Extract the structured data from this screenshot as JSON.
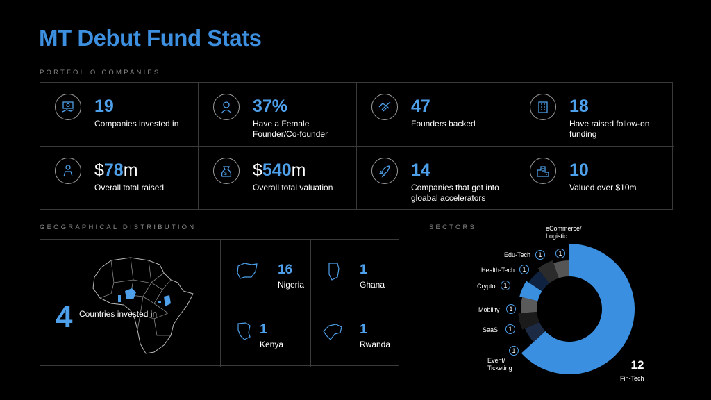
{
  "title": "MT Debut Fund Stats",
  "sections": {
    "portfolio": "PORTFOLIO COMPANIES",
    "geo": "GEOGRAPHICAL DISTRIBUTION",
    "sectors": "SECTORS"
  },
  "stats": [
    {
      "icon": "money-hand-icon",
      "num": "19",
      "suffix": "",
      "prefix": "",
      "desc": "Companies invested in"
    },
    {
      "icon": "female-founder-icon",
      "num": "37%",
      "suffix": "",
      "prefix": "",
      "desc": "Have a Female Founder/Co-founder"
    },
    {
      "icon": "handshake-icon",
      "num": "47",
      "suffix": "",
      "prefix": "",
      "desc": "Founders backed"
    },
    {
      "icon": "building-icon",
      "num": "18",
      "suffix": "",
      "prefix": "",
      "desc": "Have raised follow-on funding"
    },
    {
      "icon": "investor-icon",
      "num": "78",
      "prefix": "$",
      "suffix": "m",
      "desc": "Overall total raised"
    },
    {
      "icon": "money-bag-icon",
      "num": "540",
      "prefix": "$",
      "suffix": "m",
      "desc": "Overall total valuation"
    },
    {
      "icon": "rocket-icon",
      "num": "14",
      "suffix": "",
      "prefix": "",
      "desc": "Companies that got into gloabal accelerators"
    },
    {
      "icon": "city-icon",
      "num": "10",
      "suffix": "",
      "prefix": "",
      "desc": "Valued over $10m"
    }
  ],
  "geo": {
    "count": "4",
    "count_label": "Countries invested in",
    "countries": [
      {
        "num": "16",
        "name": "Nigeria"
      },
      {
        "num": "1",
        "name": "Ghana"
      },
      {
        "num": "1",
        "name": "Kenya"
      },
      {
        "num": "1",
        "name": "Rwanda"
      }
    ]
  },
  "sectors": [
    {
      "name": "Fin-Tech",
      "value": 12,
      "color": "#3b8fe0"
    },
    {
      "name": "Event/ Ticketing",
      "value": 1,
      "color": "#1c2a44"
    },
    {
      "name": "SaaS",
      "value": 1,
      "color": "#1b1b1b"
    },
    {
      "name": "Mobility",
      "value": 1,
      "color": "#5a5a5a"
    },
    {
      "name": "Crypto",
      "value": 1,
      "color": "#3a8fdf"
    },
    {
      "name": "Health-Tech",
      "value": 1,
      "color": "#0f2240"
    },
    {
      "name": "Edu-Tech",
      "value": 1,
      "color": "#2b2b2b"
    },
    {
      "name": "eCommerce/ Logistic",
      "value": 1,
      "color": "#555555"
    }
  ]
}
